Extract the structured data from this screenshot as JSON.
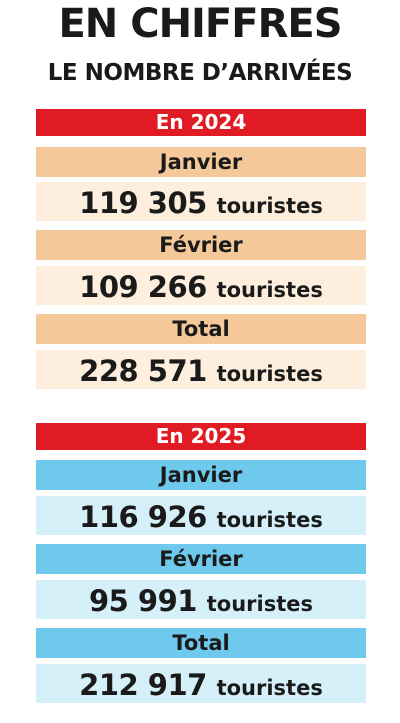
{
  "title": "EN CHIFFRES",
  "subtitle": "LE NOMBRE D’ARRIVÉES",
  "unit": "touristes",
  "colors": {
    "year_band": "#e01b24",
    "header_2024": "#f5c89a",
    "value_2024": "#fdeedd",
    "header_2025": "#6fc9ec",
    "value_2025": "#d6f0fa"
  },
  "y2024": {
    "label": "En 2024",
    "rows": [
      {
        "label": "Janvier",
        "value": "119 305"
      },
      {
        "label": "Février",
        "value": "109 266"
      },
      {
        "label": "Total",
        "value": "228 571"
      }
    ]
  },
  "y2025": {
    "label": "En 2025",
    "rows": [
      {
        "label": "Janvier",
        "value": "116 926"
      },
      {
        "label": "Février",
        "value": "95 991"
      },
      {
        "label": "Total",
        "value": "212 917"
      }
    ]
  }
}
